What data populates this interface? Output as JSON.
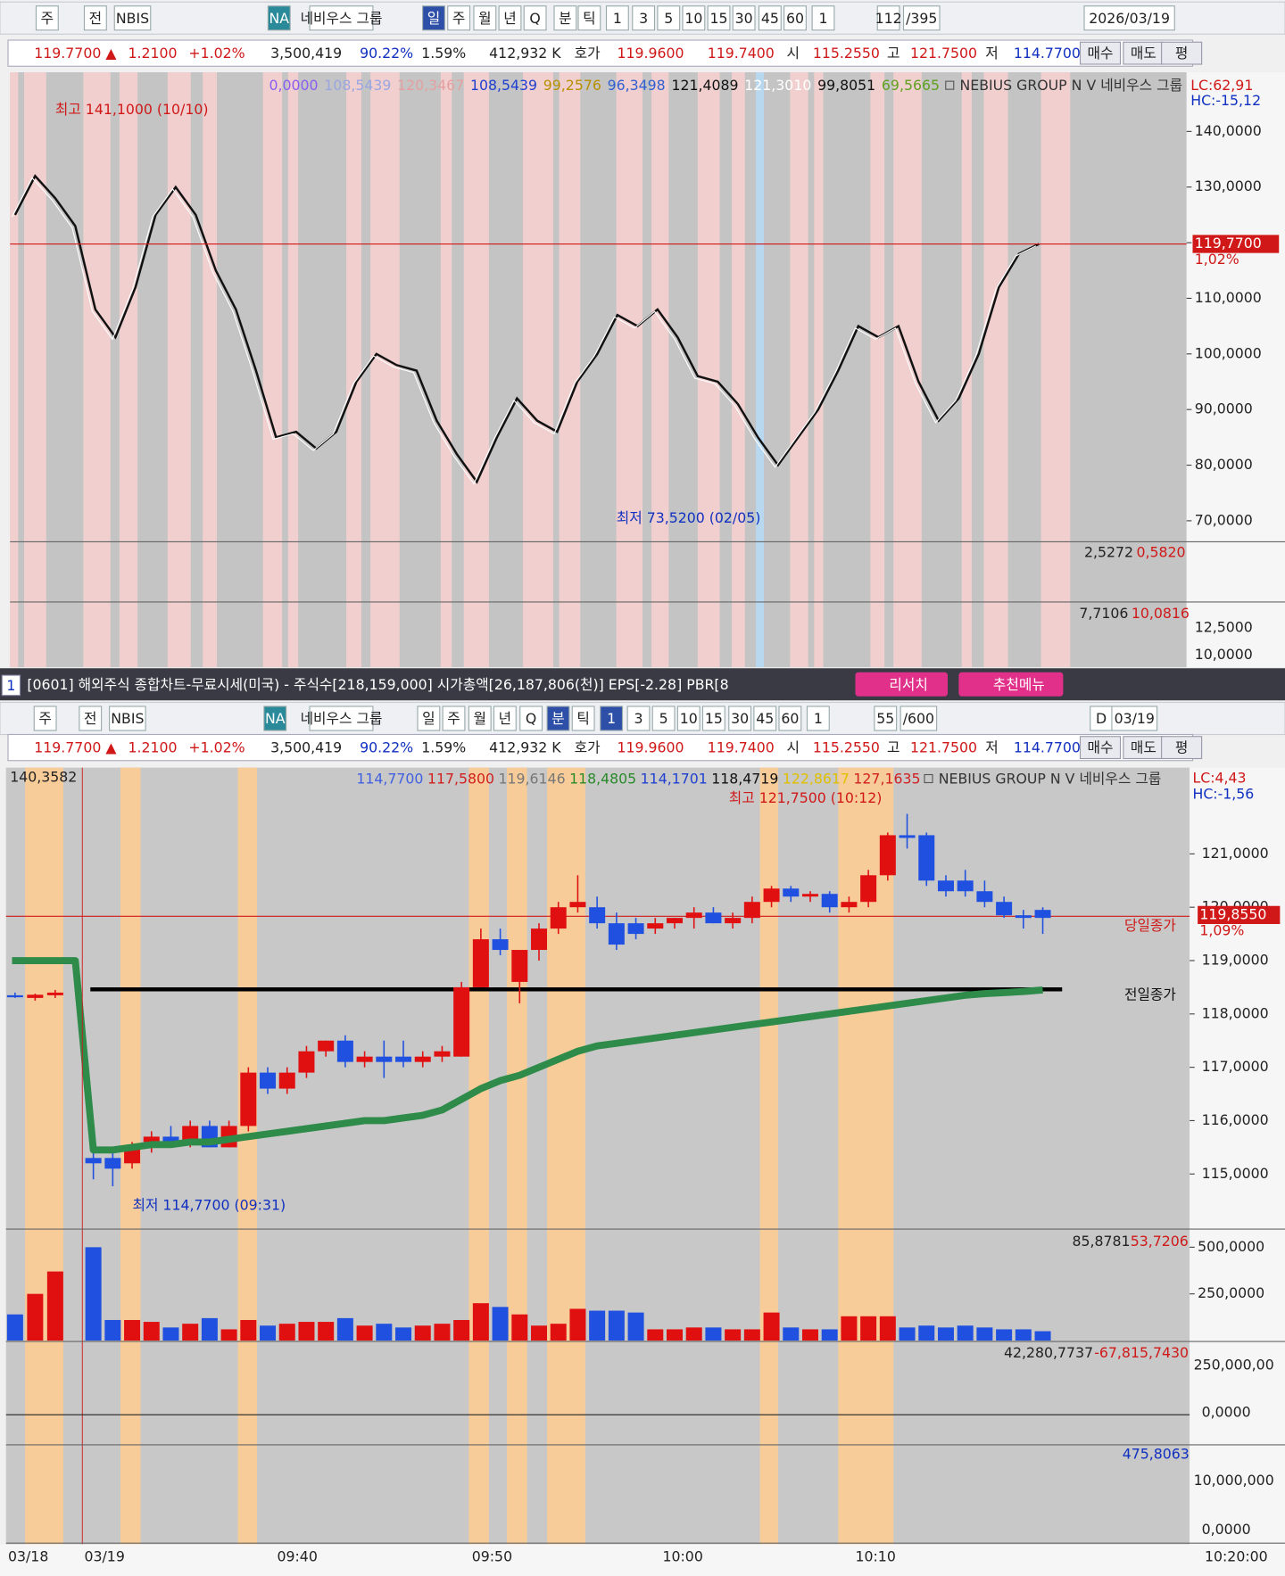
{
  "top": {
    "toolbar": [
      "주",
      "전",
      "NBIS",
      "NA",
      "네비우스 그룹",
      "일",
      "주",
      "월",
      "년",
      "Q",
      "분",
      "틱",
      "1",
      "3",
      "5",
      "10",
      "15",
      "30",
      "45",
      "60",
      "1",
      "112",
      "/395",
      "2026/03/19"
    ],
    "quote": [
      "119.7700 ▲",
      "1.2100",
      "+1.02%",
      "3,500,419",
      "90.22%",
      "1.59%",
      "412,932 K",
      "호가",
      "119.9600",
      "119.7400",
      "시",
      "115.2550",
      "고",
      "121.7500",
      "저",
      "114.7700",
      "매수",
      "매도",
      "평"
    ],
    "legend": [
      "0,0000",
      "108,5439",
      "120,3467",
      "108,5439",
      "99,2576",
      "96,3498",
      "121,4089",
      "121,3010",
      "99,8051",
      "69,5665",
      "NEBIUS GROUP N V  네비우스 그룹"
    ],
    "lc": "LC:62,91",
    "hc": "HC:-15,12",
    "high_note": "최고 141,1000 (10/10)",
    "low_note": "최저 73,5200 (02/05)",
    "price_tag": "119,7700",
    "price_pct": "1,02%",
    "yticks": [
      {
        "value": 140,
        "label": "140,0000"
      },
      {
        "value": 130,
        "label": "130,0000"
      },
      {
        "value": 120,
        "label": "120,0000"
      },
      {
        "value": 110,
        "label": "110,0000"
      },
      {
        "value": 100,
        "label": "100,0000"
      },
      {
        "value": 90,
        "label": "90,0000"
      },
      {
        "value": 80,
        "label": "80,0000"
      },
      {
        "value": 70,
        "label": "70,0000"
      }
    ],
    "closes": [
      125,
      132,
      128,
      123,
      108,
      103,
      112,
      125,
      130,
      125,
      115,
      108,
      97,
      85,
      86,
      83,
      86,
      95,
      100,
      98,
      97,
      88,
      82,
      77,
      85,
      92,
      88,
      86,
      95,
      100,
      107,
      105,
      108,
      103,
      96,
      95,
      91,
      85,
      80,
      85,
      90,
      97,
      105,
      103,
      105,
      95,
      88,
      92,
      100,
      112,
      118,
      119.77
    ],
    "volume_labels": [
      "2,5272",
      "0,5820"
    ],
    "indicator_labels": [
      "7,7106",
      "10,0816"
    ],
    "indicator_ticks": [
      "12,5000",
      "10,0000"
    ]
  },
  "titlebar": {
    "num": "1",
    "text": "[0601] 해외주식 종합차트-무료시세(미국) - 주식수[218,159,000] 시가총액[26,187,806(천)] EPS[-2.28] PBR[8",
    "research": "리서치",
    "menu": "추천메뉴"
  },
  "bottom": {
    "toolbar": [
      "주",
      "전",
      "NBIS",
      "NA",
      "네비우스 그룹",
      "일",
      "주",
      "월",
      "년",
      "Q",
      "분",
      "틱",
      "1",
      "3",
      "5",
      "10",
      "15",
      "30",
      "45",
      "60",
      "1",
      "55",
      "/600",
      "D",
      "03/19"
    ],
    "quote": [
      "119.7700 ▲",
      "1.2100",
      "+1.02%",
      "3,500,419",
      "90.22%",
      "1.59%",
      "412,932 K",
      "호가",
      "119.9600",
      "119.7400",
      "시",
      "115.2550",
      "고",
      "121.7500",
      "저",
      "114.7700",
      "매수",
      "매도",
      "평"
    ],
    "legend": [
      "114,7700",
      "117,5800",
      "119,6146",
      "118,4805",
      "114,1701",
      "118,4719",
      "122,8617",
      "127,1635",
      "NEBIUS GROUP N V  네비우스 그룹"
    ],
    "top_left": "140,3582",
    "lc": "LC:4,43",
    "hc": "HC:-1,56",
    "high_note": "최고 121,7500 (10:12)",
    "low_note": "최저 114,7700 (09:31)",
    "price_tag": "119,8550",
    "price_pct": "1,09%",
    "today_close": "당일종가",
    "prev_close": "전일종가",
    "today_close_line": 119.83,
    "prev_close_line": 118.46,
    "yticks": [
      {
        "value": 121,
        "label": "121,0000"
      },
      {
        "value": 120,
        "label": "120,0000"
      },
      {
        "value": 119,
        "label": "119,0000"
      },
      {
        "value": 118,
        "label": "118,0000"
      },
      {
        "value": 117,
        "label": "117,0000"
      },
      {
        "value": 116,
        "label": "116,0000"
      },
      {
        "value": 115,
        "label": "115,0000"
      }
    ],
    "prev_day_candles": [
      [
        118.35,
        118.4,
        118.3,
        118.33
      ],
      [
        118.3,
        118.38,
        118.25,
        118.36
      ],
      [
        118.35,
        118.45,
        118.3,
        118.4
      ]
    ],
    "candles": [
      [
        115.3,
        115.5,
        114.9,
        115.2
      ],
      [
        115.3,
        115.4,
        114.77,
        115.1
      ],
      [
        115.2,
        115.6,
        115.1,
        115.5
      ],
      [
        115.6,
        115.8,
        115.4,
        115.7
      ],
      [
        115.7,
        115.9,
        115.5,
        115.6
      ],
      [
        115.6,
        116.0,
        115.5,
        115.9
      ],
      [
        115.9,
        116.0,
        115.5,
        115.5
      ],
      [
        115.5,
        116.0,
        115.5,
        115.9
      ],
      [
        115.9,
        117.0,
        115.8,
        116.9
      ],
      [
        116.9,
        117.0,
        116.5,
        116.6
      ],
      [
        116.6,
        117.0,
        116.5,
        116.9
      ],
      [
        116.9,
        117.4,
        116.8,
        117.3
      ],
      [
        117.3,
        117.5,
        117.2,
        117.5
      ],
      [
        117.5,
        117.6,
        117.0,
        117.1
      ],
      [
        117.1,
        117.3,
        117.0,
        117.2
      ],
      [
        117.2,
        117.5,
        116.8,
        117.1
      ],
      [
        117.2,
        117.5,
        117.0,
        117.1
      ],
      [
        117.1,
        117.3,
        117.0,
        117.2
      ],
      [
        117.2,
        117.4,
        117.1,
        117.3
      ],
      [
        117.2,
        118.6,
        117.2,
        118.5
      ],
      [
        118.5,
        119.6,
        118.5,
        119.4
      ],
      [
        119.4,
        119.6,
        119.1,
        119.2
      ],
      [
        118.6,
        119.2,
        118.2,
        119.2
      ],
      [
        119.2,
        119.7,
        119.0,
        119.6
      ],
      [
        119.6,
        120.1,
        119.5,
        120.0
      ],
      [
        120.0,
        120.6,
        119.9,
        120.1
      ],
      [
        120.0,
        120.2,
        119.6,
        119.7
      ],
      [
        119.7,
        119.9,
        119.2,
        119.3
      ],
      [
        119.7,
        119.8,
        119.4,
        119.5
      ],
      [
        119.6,
        119.8,
        119.5,
        119.7
      ],
      [
        119.7,
        119.8,
        119.6,
        119.8
      ],
      [
        119.8,
        120.0,
        119.6,
        119.9
      ],
      [
        119.9,
        120.0,
        119.7,
        119.7
      ],
      [
        119.7,
        119.9,
        119.6,
        119.8
      ],
      [
        119.8,
        120.2,
        119.7,
        120.1
      ],
      [
        120.1,
        120.4,
        120.0,
        120.35
      ],
      [
        120.35,
        120.4,
        120.1,
        120.2
      ],
      [
        120.2,
        120.3,
        120.1,
        120.25
      ],
      [
        120.25,
        120.3,
        119.9,
        120.0
      ],
      [
        120.0,
        120.2,
        119.9,
        120.1
      ],
      [
        120.1,
        120.7,
        120.0,
        120.6
      ],
      [
        120.6,
        121.4,
        120.5,
        121.35
      ],
      [
        121.35,
        121.75,
        121.1,
        121.3
      ],
      [
        121.35,
        121.4,
        120.4,
        120.5
      ],
      [
        120.5,
        120.6,
        120.2,
        120.3
      ],
      [
        120.5,
        120.7,
        120.2,
        120.3
      ],
      [
        120.3,
        120.5,
        120.0,
        120.1
      ],
      [
        120.1,
        120.2,
        119.8,
        119.85
      ],
      [
        119.85,
        119.95,
        119.6,
        119.8
      ],
      [
        119.95,
        120.0,
        119.5,
        119.8
      ]
    ],
    "avg_line": [
      115.45,
      115.45,
      115.5,
      115.55,
      115.55,
      115.6,
      115.6,
      115.65,
      115.7,
      115.75,
      115.8,
      115.85,
      115.9,
      115.95,
      116.0,
      116.0,
      116.05,
      116.1,
      116.2,
      116.4,
      116.6,
      116.75,
      116.85,
      117.0,
      117.15,
      117.3,
      117.4,
      117.45,
      117.5,
      117.55,
      117.6,
      117.65,
      117.7,
      117.75,
      117.8,
      117.85,
      117.9,
      117.95,
      118.0,
      118.05,
      118.1,
      118.15,
      118.2,
      118.25,
      118.3,
      118.35,
      118.38,
      118.4,
      118.42,
      118.45
    ],
    "volume_labels": [
      "85,8781",
      "53,7206"
    ],
    "volume_ticks": [
      {
        "value": 500,
        "label": "500,0000"
      },
      {
        "value": 250,
        "label": "250,0000"
      }
    ],
    "prev_day_volumes": [
      140,
      250,
      370
    ],
    "volumes": [
      500,
      110,
      110,
      100,
      70,
      90,
      120,
      60,
      110,
      80,
      90,
      100,
      100,
      120,
      80,
      90,
      70,
      80,
      90,
      110,
      200,
      180,
      140,
      80,
      90,
      170,
      160,
      160,
      150,
      60,
      60,
      70,
      70,
      60,
      60,
      150,
      70,
      60,
      60,
      130,
      130,
      130,
      70,
      80,
      70,
      80,
      70,
      60,
      60,
      50
    ],
    "ind1_labels": [
      "42,280,7737",
      "-67,815,7430"
    ],
    "ind1_ticks": [
      "250,000,00",
      "0,0000"
    ],
    "ind2_label": "475,8063",
    "ind2_ticks": [
      "10,000,000",
      "0,0000"
    ],
    "xlabels": [
      "03/18",
      "03/19",
      "09:40",
      "09:50",
      "10:00",
      "10:10",
      "10:20:00"
    ]
  }
}
